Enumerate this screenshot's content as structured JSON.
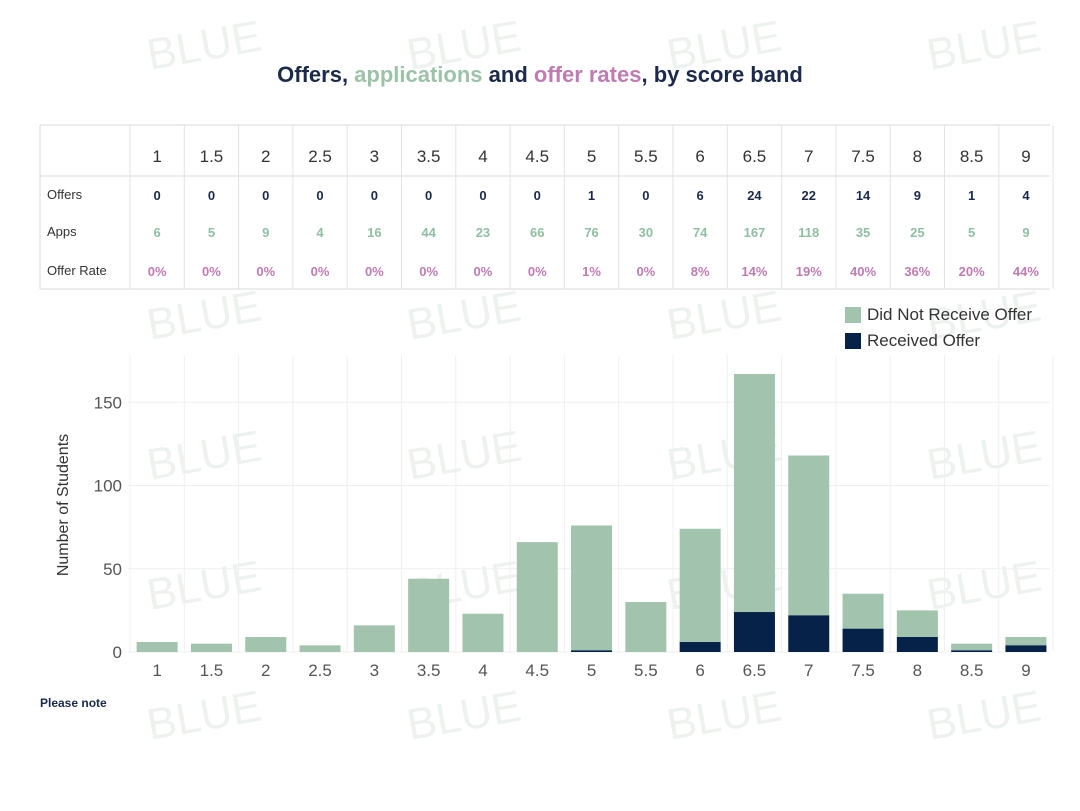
{
  "title": {
    "part1": "Offers, ",
    "part2": "applications",
    "part3": " and ",
    "part4": "offer rates",
    "part5": ", by score band"
  },
  "colors": {
    "navy": "#062248",
    "green": "#a2c3ad",
    "apps_text": "#8fbfa0",
    "rate_text": "#c07bb3",
    "title_dark": "#1b2a4a"
  },
  "table": {
    "row_labels": [
      "Offers",
      "Apps",
      "Offer Rate"
    ],
    "bands": [
      "1",
      "1.5",
      "2",
      "2.5",
      "3",
      "3.5",
      "4",
      "4.5",
      "5",
      "5.5",
      "6",
      "6.5",
      "7",
      "7.5",
      "8",
      "8.5",
      "9"
    ],
    "offers": [
      "0",
      "0",
      "0",
      "0",
      "0",
      "0",
      "0",
      "0",
      "1",
      "0",
      "6",
      "24",
      "22",
      "14",
      "9",
      "1",
      "4"
    ],
    "apps": [
      "6",
      "5",
      "9",
      "4",
      "16",
      "44",
      "23",
      "66",
      "76",
      "30",
      "74",
      "167",
      "118",
      "35",
      "25",
      "5",
      "9"
    ],
    "rates": [
      "0%",
      "0%",
      "0%",
      "0%",
      "0%",
      "0%",
      "0%",
      "0%",
      "1%",
      "0%",
      "8%",
      "14%",
      "19%",
      "40%",
      "36%",
      "20%",
      "44%"
    ]
  },
  "legend": {
    "not_offer": "Did Not Receive Offer",
    "offer": "Received Offer"
  },
  "note": "Please note",
  "watermark": "BLUE",
  "chart_data": {
    "type": "bar",
    "stacked": true,
    "categories": [
      "1",
      "1.5",
      "2",
      "2.5",
      "3",
      "3.5",
      "4",
      "4.5",
      "5",
      "5.5",
      "6",
      "6.5",
      "7",
      "7.5",
      "8",
      "8.5",
      "9"
    ],
    "series": [
      {
        "name": "Received Offer",
        "values": [
          0,
          0,
          0,
          0,
          0,
          0,
          0,
          0,
          1,
          0,
          6,
          24,
          22,
          14,
          9,
          1,
          4
        ]
      },
      {
        "name": "Did Not Receive Offer",
        "values": [
          6,
          5,
          9,
          4,
          16,
          44,
          23,
          66,
          75,
          30,
          68,
          143,
          96,
          21,
          16,
          4,
          5
        ]
      }
    ],
    "ylabel": "Number of Students",
    "xlabel": "",
    "yticks": [
      0,
      50,
      100,
      150
    ],
    "ylim": [
      0,
      170
    ],
    "legend_position": "top-right"
  }
}
